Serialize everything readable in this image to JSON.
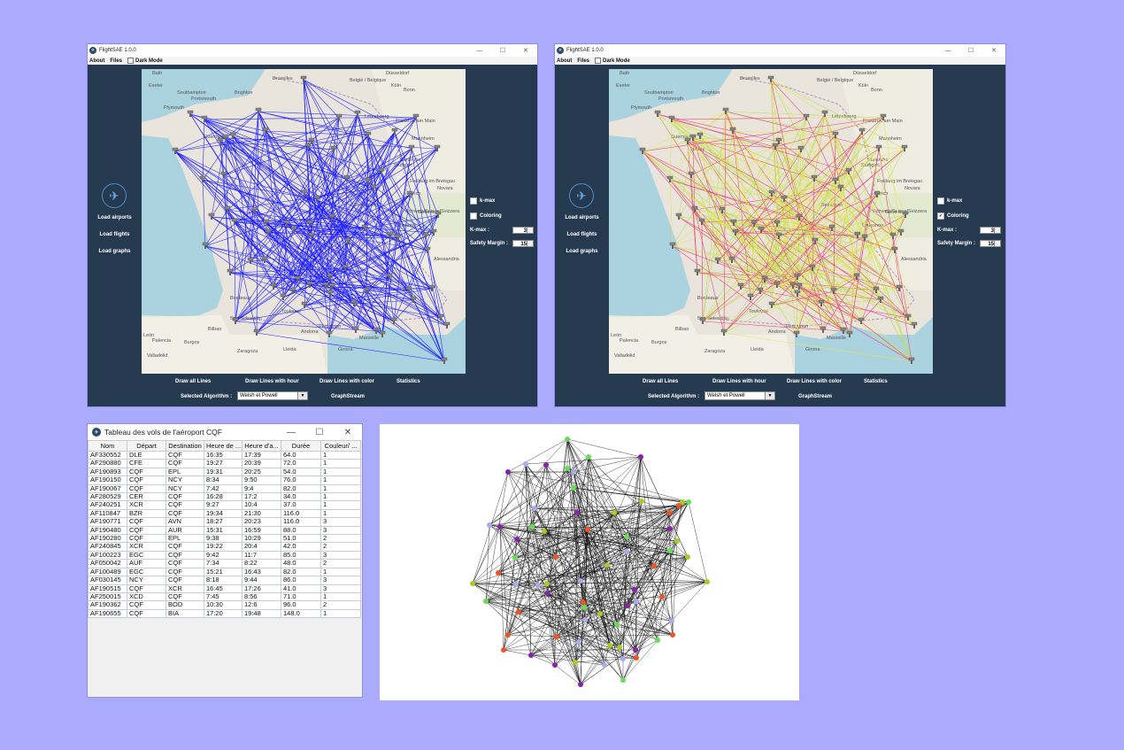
{
  "windows": [
    {
      "title": "FlightSAE 1.0.0",
      "menu": {
        "about": "About",
        "files": "Files",
        "dark_mode": "Dark Mode"
      },
      "sidebar": {
        "load_airports": "Load airports",
        "load_flights": "Load flights",
        "load_graphs": "Load graphs"
      },
      "options": {
        "kmax_checkbox": "k-max",
        "kmax_checked": false,
        "coloring_checkbox": "Coloring",
        "coloring_checked": false,
        "kmax_label": "K-max :",
        "kmax_value": "3",
        "safety_label": "Safety Margin :",
        "safety_value": "15"
      },
      "buttons": {
        "draw_all": "Draw all Lines",
        "draw_hour": "Draw Lines with hour",
        "draw_color": "Draw Lines with color",
        "statistics": "Statistics",
        "graphstream": "GraphStream"
      },
      "algorithm": {
        "label": "Selected Algorithm :",
        "value": "Welsh et Powell"
      },
      "map_labels": [
        "Bath",
        "Exeter",
        "Southampton",
        "Brighton",
        "Bruxelles",
        "België / Belgique",
        "Düsseldorf",
        "Köln",
        "Bonn",
        "Plymouth",
        "Portsmouth",
        "Lëtzebuerg",
        "Frankfurt am Main",
        "Guernsey",
        "Jersey",
        "Mannheim",
        "Stuttgart",
        "Karlsruhe",
        "Freiburg im Breisgau",
        "Zürich",
        "Schweiz/Suisse/Svizzera",
        "Besançon",
        "Genève",
        "Lausanne",
        "Bordeaux",
        "Toulouse",
        "San Sebastián",
        "Bilbao",
        "Burgos",
        "Zaragoza",
        "Lleida",
        "Andorra",
        "Perpignan",
        "Girona",
        "Palencia",
        "Valladolid",
        "Marseille",
        "Novara",
        "Alessandria",
        "León"
      ],
      "line_color": "#1a1aff"
    },
    {
      "title": "FlightSAE 1.0.0",
      "menu": {
        "about": "About",
        "files": "Files",
        "dark_mode": "Dark Mode"
      },
      "sidebar": {
        "load_airports": "Load airports",
        "load_flights": "Load flights",
        "load_graphs": "Load graphs"
      },
      "options": {
        "kmax_checkbox": "k-max",
        "kmax_checked": false,
        "coloring_checkbox": "Coloring",
        "coloring_checked": true,
        "kmax_label": "K-max :",
        "kmax_value": "3",
        "safety_label": "Safety Margin :",
        "safety_value": "15"
      },
      "buttons": {
        "draw_all": "Draw all Lines",
        "draw_hour": "Draw Lines with hour",
        "draw_color": "Draw Lines with color",
        "statistics": "Statistics",
        "graphstream": "GraphStream"
      },
      "algorithm": {
        "label": "Selected Algorithm :",
        "value": "Welsh et Powell"
      },
      "line_colors": [
        "#e8e64a",
        "#e83a7a",
        "#b8e04a"
      ]
    }
  ],
  "flight_table": {
    "title": "Tableau des vols de l'aéroport CQF",
    "columns": [
      "Nom",
      "Départ",
      "Destination",
      "Heure de ...",
      "Heure d'a...",
      "Durée",
      "Couleur/ ..."
    ],
    "rows": [
      [
        "AF330552",
        "DLE",
        "CQF",
        "16:35",
        "17:39",
        "64.0",
        "1"
      ],
      [
        "AF290880",
        "CFE",
        "CQF",
        "19:27",
        "20:39",
        "72.0",
        "1"
      ],
      [
        "AF190893",
        "CQF",
        "EPL",
        "19:31",
        "20:25",
        "54.0",
        "1"
      ],
      [
        "AF190150",
        "CQF",
        "NCY",
        "8:34",
        "9:50",
        "76.0",
        "1"
      ],
      [
        "AF190067",
        "CQF",
        "NCY",
        "7:42",
        "9:4",
        "82.0",
        "1"
      ],
      [
        "AF280529",
        "CER",
        "CQF",
        "16:28",
        "17:2",
        "34.0",
        "1"
      ],
      [
        "AF240251",
        "XCR",
        "CQF",
        "9:27",
        "10:4",
        "37.0",
        "1"
      ],
      [
        "AF110847",
        "BZR",
        "CQF",
        "19:34",
        "21:30",
        "116.0",
        "1"
      ],
      [
        "AF190771",
        "CQF",
        "AVN",
        "18:27",
        "20:23",
        "116.0",
        "3"
      ],
      [
        "AF190480",
        "CQF",
        "AUR",
        "15:31",
        "16:59",
        "88.0",
        "3"
      ],
      [
        "AF190280",
        "CQF",
        "EPL",
        "9:38",
        "10:29",
        "51.0",
        "2"
      ],
      [
        "AF240845",
        "XCR",
        "CQF",
        "19:22",
        "20:4",
        "42.0",
        "2"
      ],
      [
        "AF100223",
        "EGC",
        "CQF",
        "9:42",
        "11:7",
        "85.0",
        "3"
      ],
      [
        "AF050042",
        "AUF",
        "CQF",
        "7:34",
        "8:22",
        "48.0",
        "2"
      ],
      [
        "AF100489",
        "EGC",
        "CQF",
        "15:21",
        "16:43",
        "82.0",
        "1"
      ],
      [
        "AF030145",
        "NCY",
        "CQF",
        "8:18",
        "9:44",
        "86.0",
        "3"
      ],
      [
        "AF190515",
        "CQF",
        "XCR",
        "16:45",
        "17:26",
        "41.0",
        "3"
      ],
      [
        "AF250015",
        "XCD",
        "CQF",
        "7:45",
        "8:56",
        "71.0",
        "1"
      ],
      [
        "AF190362",
        "CQF",
        "BOD",
        "10:30",
        "12:6",
        "96.0",
        "2"
      ],
      [
        "AF190655",
        "CQF",
        "BIA",
        "17:20",
        "19:48",
        "148.0",
        "1"
      ]
    ]
  },
  "graph": {
    "node_colors": [
      "#66dd55",
      "#8822aa",
      "#ee5522",
      "#aacc22",
      "#aaaaee"
    ]
  }
}
